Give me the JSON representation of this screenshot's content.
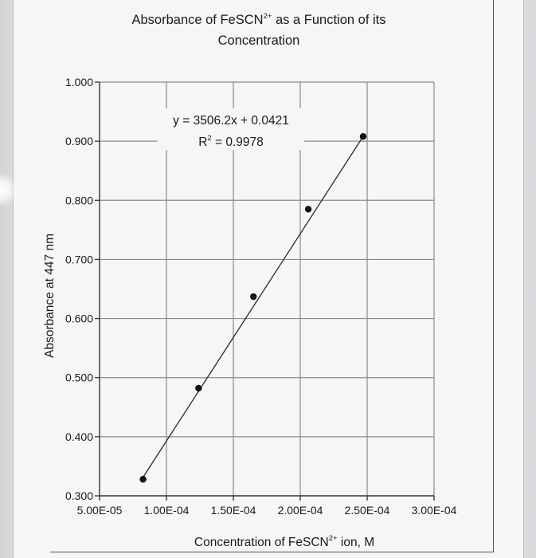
{
  "chart_data": {
    "type": "scatter",
    "title": {
      "line1_prefix": "Absorbance of FeSCN",
      "line1_sup": "2+",
      "line1_suffix": " as a Function of its",
      "line2": "Concentration"
    },
    "xlabel": {
      "prefix": "Concentration of FeSCN",
      "sup": "2+",
      "suffix": " ion, M"
    },
    "ylabel": "Absorbance at 447 nm",
    "xlim": [
      5e-05,
      0.0003
    ],
    "ylim": [
      0.3,
      1.0
    ],
    "x_ticks": [
      "5.00E-05",
      "1.00E-04",
      "1.50E-04",
      "2.00E-04",
      "2.50E-04",
      "3.00E-04"
    ],
    "y_ticks": [
      "0.300",
      "0.400",
      "0.500",
      "0.600",
      "0.700",
      "0.800",
      "0.900",
      "1.000"
    ],
    "grid": "horizontal and vertical",
    "legend": "none",
    "series": [
      {
        "x": [
          8.25e-05,
          0.000124,
          0.000165,
          0.000206,
          0.000247
        ],
        "y": [
          0.328,
          0.482,
          0.637,
          0.785,
          0.908
        ]
      }
    ],
    "trendline": {
      "slope": 3506.2,
      "intercept": 0.0421,
      "equation": "y = 3506.2x + 0.0421",
      "r2_prefix": "R",
      "r2_sup": "2",
      "r2_suffix": " = 0.9978"
    }
  }
}
